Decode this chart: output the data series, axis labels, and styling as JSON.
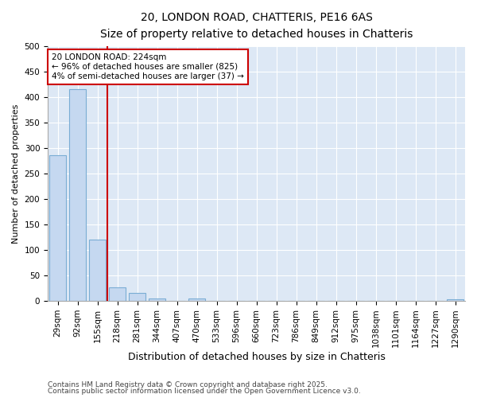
{
  "title1": "20, LONDON ROAD, CHATTERIS, PE16 6AS",
  "title2": "Size of property relative to detached houses in Chatteris",
  "xlabel": "Distribution of detached houses by size in Chatteris",
  "ylabel": "Number of detached properties",
  "categories": [
    "29sqm",
    "92sqm",
    "155sqm",
    "218sqm",
    "281sqm",
    "344sqm",
    "407sqm",
    "470sqm",
    "533sqm",
    "596sqm",
    "660sqm",
    "723sqm",
    "786sqm",
    "849sqm",
    "912sqm",
    "975sqm",
    "1038sqm",
    "1101sqm",
    "1164sqm",
    "1227sqm",
    "1290sqm"
  ],
  "values": [
    285,
    415,
    120,
    27,
    15,
    4,
    0,
    5,
    0,
    0,
    0,
    0,
    0,
    0,
    0,
    0,
    0,
    0,
    0,
    0,
    3
  ],
  "bar_color": "#c5d8f0",
  "bar_edge_color": "#7aadd4",
  "red_line_index": 2.5,
  "annotation_line1": "20 LONDON ROAD: 224sqm",
  "annotation_line2": "← 96% of detached houses are smaller (825)",
  "annotation_line3": "4% of semi-detached houses are larger (37) →",
  "ylim": [
    0,
    500
  ],
  "yticks": [
    0,
    50,
    100,
    150,
    200,
    250,
    300,
    350,
    400,
    450,
    500
  ],
  "footnote1": "Contains HM Land Registry data © Crown copyright and database right 2025.",
  "footnote2": "Contains public sector information licensed under the Open Government Licence v3.0.",
  "fig_bg_color": "#ffffff",
  "plot_bg_color": "#dde8f5",
  "grid_color": "#ffffff",
  "title_fontsize": 10,
  "subtitle_fontsize": 9,
  "ylabel_fontsize": 8,
  "xlabel_fontsize": 9,
  "tick_fontsize": 7.5,
  "footnote_fontsize": 6.5
}
